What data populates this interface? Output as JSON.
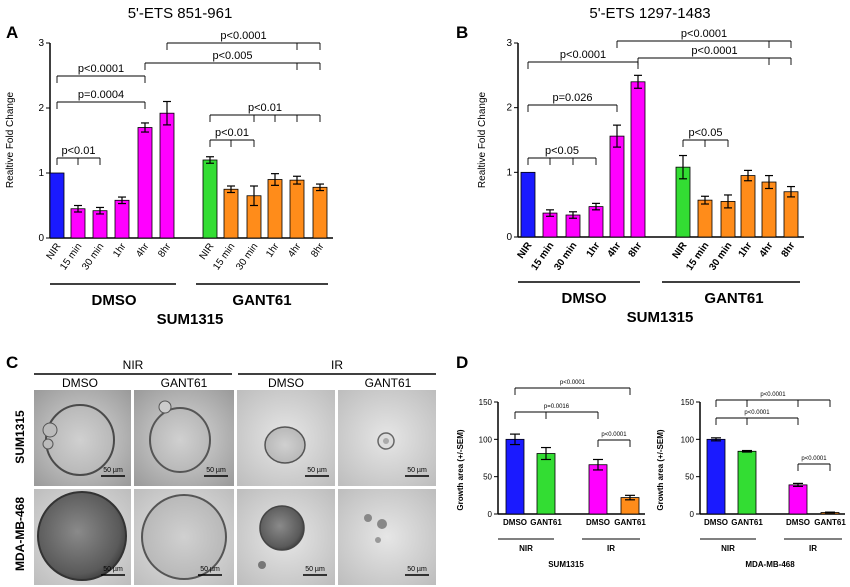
{
  "chart_data": [
    {
      "panel": "A",
      "type": "bar",
      "title": "5'-ETS 851-961",
      "ylabel": "Realtive Fold Change",
      "ylim": [
        0,
        3
      ],
      "yticks": [
        "0",
        "1",
        "2",
        "3"
      ],
      "categories": [
        "NIR",
        "15 min",
        "30 min",
        "1hr",
        "4hr",
        "8hr",
        "NIR",
        "15 min",
        "30 min",
        "1hr",
        "4hr",
        "8hr"
      ],
      "values": [
        1.0,
        0.45,
        0.42,
        0.58,
        1.7,
        1.92,
        1.2,
        0.75,
        0.65,
        0.9,
        0.89,
        0.78
      ],
      "errors": [
        0,
        0.05,
        0.05,
        0.05,
        0.07,
        0.18,
        0.05,
        0.05,
        0.15,
        0.09,
        0.06,
        0.05
      ],
      "colors": [
        "#1a1aff",
        "#ff00ff",
        "#ff00ff",
        "#ff00ff",
        "#ff00ff",
        "#ff00ff",
        "#33dd33",
        "#ff8c1a",
        "#ff8c1a",
        "#ff8c1a",
        "#ff8c1a",
        "#ff8c1a"
      ],
      "groups": [
        "DMSO",
        "GANT61"
      ],
      "cell_line": "SUM1315",
      "annotations": [
        "p<0.01",
        "p=0.0004",
        "p<0.0001",
        "p<0.005",
        "p<0.0001",
        "p<0.01",
        "p<0.01"
      ]
    },
    {
      "panel": "B",
      "type": "bar",
      "title": "5'-ETS 1297-1483",
      "ylabel": "Realtive Fold Change",
      "ylim": [
        0,
        3
      ],
      "yticks": [
        "0",
        "1",
        "2",
        "3"
      ],
      "categories": [
        "NIR",
        "15 min",
        "30 min",
        "1hr",
        "4hr",
        "8hr",
        "NIR",
        "15 min",
        "30 min",
        "1hr",
        "4hr",
        "8hr"
      ],
      "values": [
        1.0,
        0.37,
        0.34,
        0.47,
        1.56,
        2.4,
        1.08,
        0.57,
        0.55,
        0.95,
        0.85,
        0.7
      ],
      "errors": [
        0,
        0.05,
        0.05,
        0.05,
        0.17,
        0.1,
        0.18,
        0.06,
        0.1,
        0.08,
        0.1,
        0.08
      ],
      "colors": [
        "#1a1aff",
        "#ff00ff",
        "#ff00ff",
        "#ff00ff",
        "#ff00ff",
        "#ff00ff",
        "#33dd33",
        "#ff8c1a",
        "#ff8c1a",
        "#ff8c1a",
        "#ff8c1a",
        "#ff8c1a"
      ],
      "groups": [
        "DMSO",
        "GANT61"
      ],
      "cell_line": "SUM1315",
      "annotations": [
        "p<0.05",
        "p=0.026",
        "p<0.0001",
        "p<0.0001",
        "p<0.0001",
        "p<0.05"
      ]
    },
    {
      "panel": "D-left",
      "type": "bar",
      "ylabel": "Growth area (+/-SEM)",
      "ylim": [
        0,
        150
      ],
      "yticks": [
        "0",
        "50",
        "100",
        "150"
      ],
      "categories": [
        "DMSO",
        "GANT61",
        "DMSO",
        "GANT61"
      ],
      "values": [
        100,
        81,
        66,
        22
      ],
      "errors": [
        7,
        8,
        7,
        3
      ],
      "colors": [
        "#1a1aff",
        "#33dd33",
        "#ff00ff",
        "#ff8c1a"
      ],
      "groups": [
        "NIR",
        "IR"
      ],
      "cell_line": "SUM1315",
      "annotations": [
        "p<0.0001",
        "p=0.0016",
        "p<0.0001"
      ]
    },
    {
      "panel": "D-right",
      "type": "bar",
      "ylabel": "Growth area (+/-SEM)",
      "ylim": [
        0,
        150
      ],
      "yticks": [
        "0",
        "50",
        "100",
        "150"
      ],
      "categories": [
        "DMSO",
        "GANT61",
        "DMSO",
        "GANT61"
      ],
      "values": [
        100,
        84,
        39,
        2
      ],
      "errors": [
        2,
        1,
        2,
        0.5
      ],
      "colors": [
        "#1a1aff",
        "#33dd33",
        "#ff00ff",
        "#ff8c1a"
      ],
      "groups": [
        "NIR",
        "IR"
      ],
      "cell_line": "MDA-MB-468",
      "annotations": [
        "p<0.0001",
        "p<0.0001",
        "p<0.0001"
      ]
    }
  ],
  "panel_c": {
    "letter": "C",
    "group_labels": [
      "NIR",
      "IR"
    ],
    "column_labels": [
      "DMSO",
      "GANT61",
      "DMSO",
      "GANT61"
    ],
    "row_labels": [
      "SUM1315",
      "MDA-MB-468"
    ],
    "scale_bar": "50 µm"
  },
  "panel_letters": [
    "A",
    "B",
    "D"
  ]
}
